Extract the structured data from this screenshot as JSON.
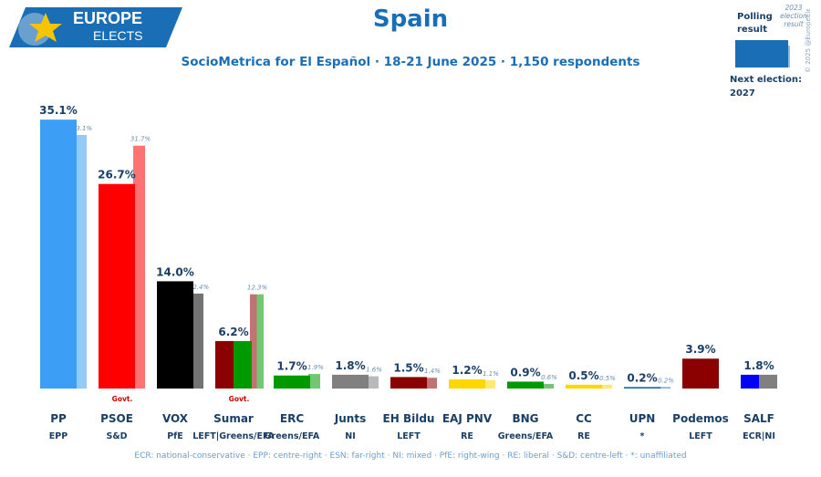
{
  "header": {
    "logo_line1": "EUROPE",
    "logo_line2": "ELECTS",
    "title": "Spain",
    "subtitle": "SocioMetrica for El Español · 18-21 June 2025 · 1,150 respondents"
  },
  "legend": {
    "polling_label": "Polling result",
    "previous_label": "2023 election result",
    "next_election_label": "Next election:",
    "next_election_year": "2027",
    "copyright": "© 2025 @EuropeElects"
  },
  "footnote": "ECR: national-conservative · EPP: centre-right · ESN: far-right · NI: mixed · PfE: right-wing · RE: liberal · S&D: centre-left · *: unaffiliated",
  "colors": {
    "accent": "#1a6eb5",
    "logo_bg": "#1a6eb5",
    "logo_star": "#f6c400"
  },
  "chart_data": {
    "type": "bar",
    "y_unit": "%",
    "ylim": [
      0,
      36
    ],
    "series": [
      {
        "name": "Polling result",
        "values": [
          35.1,
          26.7,
          14.0,
          6.2,
          1.7,
          1.8,
          1.5,
          1.2,
          0.9,
          0.5,
          0.2,
          3.9,
          1.8
        ]
      },
      {
        "name": "2023 election result",
        "values": [
          33.1,
          31.7,
          12.4,
          12.3,
          1.9,
          1.6,
          1.4,
          1.1,
          0.6,
          0.5,
          0.2,
          null,
          null
        ]
      }
    ],
    "parties": [
      {
        "name": "PP",
        "group": "EPP",
        "poll": 35.1,
        "prev": 33.1,
        "poll_label": "35.1%",
        "prev_label": "33.1%",
        "color": "#3d9ef5",
        "govt": "",
        "split": null
      },
      {
        "name": "PSOE",
        "group": "S&D",
        "poll": 26.7,
        "prev": 31.7,
        "poll_label": "26.7%",
        "prev_label": "31.7%",
        "color": "#ff0000",
        "govt": "Govt.",
        "split": null
      },
      {
        "name": "VOX",
        "group": "PfE",
        "poll": 14.0,
        "prev": 12.4,
        "poll_label": "14.0%",
        "prev_label": "12.4%",
        "color": "#000000",
        "govt": "",
        "split": null
      },
      {
        "name": "Sumar",
        "group": "LEFT|Greens/EFA",
        "poll": 6.2,
        "prev": 12.3,
        "poll_label": "6.2%",
        "prev_label": "12.3%",
        "color": "#8b0000",
        "color2": "#009900",
        "govt": "Govt.",
        "split": true
      },
      {
        "name": "ERC",
        "group": "Greens/EFA",
        "poll": 1.7,
        "prev": 1.9,
        "poll_label": "1.7%",
        "prev_label": "1.9%",
        "color": "#009900",
        "govt": "",
        "split": null
      },
      {
        "name": "Junts",
        "group": "NI",
        "poll": 1.8,
        "prev": 1.6,
        "poll_label": "1.8%",
        "prev_label": "1.6%",
        "color": "#808080",
        "govt": "",
        "split": null
      },
      {
        "name": "EH Bildu",
        "group": "LEFT",
        "poll": 1.5,
        "prev": 1.4,
        "poll_label": "1.5%",
        "prev_label": "1.4%",
        "color": "#8b0000",
        "govt": "",
        "split": null
      },
      {
        "name": "EAJ PNV",
        "group": "RE",
        "poll": 1.2,
        "prev": 1.1,
        "poll_label": "1.2%",
        "prev_label": "1.1%",
        "color": "#ffd700",
        "govt": "",
        "split": null
      },
      {
        "name": "BNG",
        "group": "Greens/EFA",
        "poll": 0.9,
        "prev": 0.6,
        "poll_label": "0.9%",
        "prev_label": "0.6%",
        "color": "#009900",
        "govt": "",
        "split": null
      },
      {
        "name": "CC",
        "group": "RE",
        "poll": 0.5,
        "prev": 0.5,
        "poll_label": "0.5%",
        "prev_label": "0.5%",
        "color": "#ffd700",
        "govt": "",
        "split": null
      },
      {
        "name": "UPN",
        "group": "*",
        "poll": 0.2,
        "prev": 0.2,
        "poll_label": "0.2%",
        "prev_label": "0.2%",
        "color": "#1a6eb5",
        "govt": "",
        "split": null
      },
      {
        "name": "Podemos",
        "group": "LEFT",
        "poll": 3.9,
        "prev": null,
        "poll_label": "3.9%",
        "prev_label": "",
        "color": "#8b0000",
        "govt": "",
        "split": null
      },
      {
        "name": "SALF",
        "group": "ECR|NI",
        "poll": 1.8,
        "prev": null,
        "poll_label": "1.8%",
        "prev_label": "",
        "color": "#0000ff",
        "color2": "#808080",
        "govt": "",
        "split": true
      }
    ]
  }
}
